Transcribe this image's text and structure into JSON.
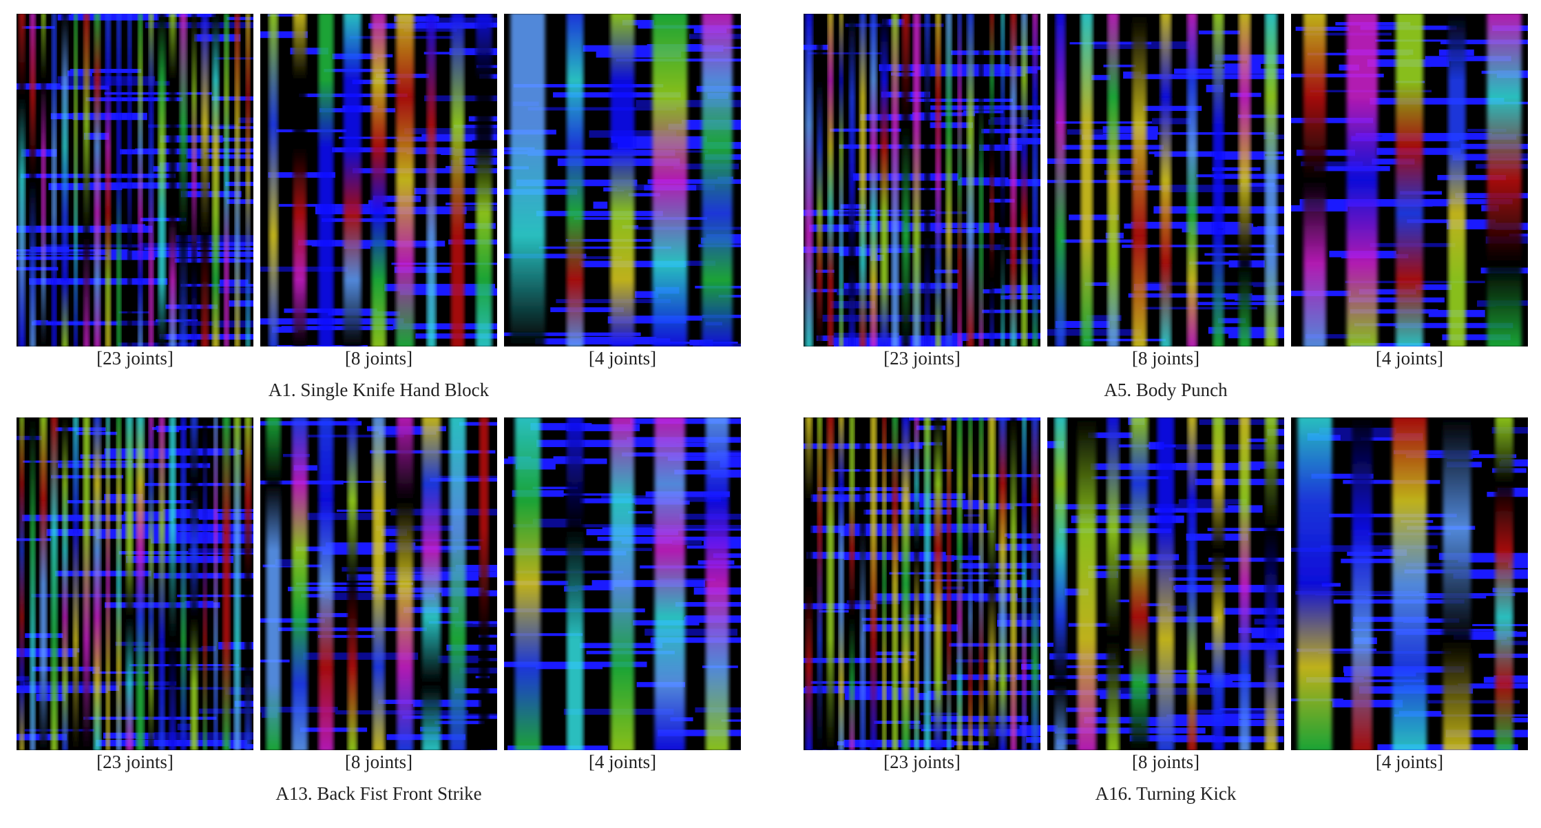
{
  "groups": [
    {
      "title": "A1. Single Knife Hand Block",
      "captions": [
        "[23 joints]",
        "[8 joints]",
        "[4 joints]"
      ]
    },
    {
      "title": "A5. Body Punch",
      "captions": [
        "[23 joints]",
        "[8 joints]",
        "[4 joints]"
      ]
    },
    {
      "title": "A13. Back Fist Front Strike",
      "captions": [
        "[23 joints]",
        "[8 joints]",
        "[4 joints]"
      ]
    },
    {
      "title": "A16. Turning Kick",
      "captions": [
        "[23 joints]",
        "[8 joints]",
        "[4 joints]"
      ]
    }
  ]
}
